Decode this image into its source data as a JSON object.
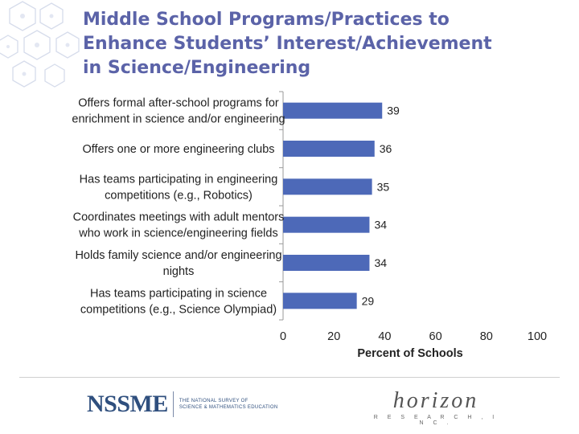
{
  "title_lines": [
    "Middle School Programs/Practices to",
    "Enhance Students’ Interest/Achievement",
    "in Science/Engineering"
  ],
  "colors": {
    "title": "#5b63a8",
    "bar": "#4d69b8",
    "text": "#222222",
    "nssme": "#2f4f7e"
  },
  "decoration": "hexagon-network-icon",
  "chart_data": {
    "type": "bar",
    "orientation": "horizontal",
    "categories": [
      [
        "Offers formal after-school programs for",
        "enrichment in science and/or engineering"
      ],
      [
        "Offers one or more engineering clubs"
      ],
      [
        "Has teams participating in engineering",
        "competitions (e.g., Robotics)"
      ],
      [
        "Coordinates meetings with adult mentors",
        "who work in science/engineering fields"
      ],
      [
        "Holds family science and/or engineering",
        "nights"
      ],
      [
        "Has teams participating in science",
        "competitions (e.g., Science Olympiad)"
      ]
    ],
    "values": [
      39,
      36,
      35,
      34,
      34,
      29
    ],
    "data_labels": [
      "39",
      "36",
      "35",
      "34",
      "34",
      "29"
    ],
    "xlabel": "Percent of Schools",
    "xlim": [
      0,
      100
    ],
    "xticks": [
      0,
      20,
      40,
      60,
      80,
      100
    ],
    "grid": false,
    "legend": "none"
  },
  "footer": {
    "nssme_mark": "NSSME",
    "nssme_tagline": [
      "THE NATIONAL SURVEY OF",
      "SCIENCE & MATHEMATICS EDUCATION"
    ],
    "horizon_name": "horizon",
    "horizon_sub": "R E S E A R C H ,  I N C ."
  }
}
